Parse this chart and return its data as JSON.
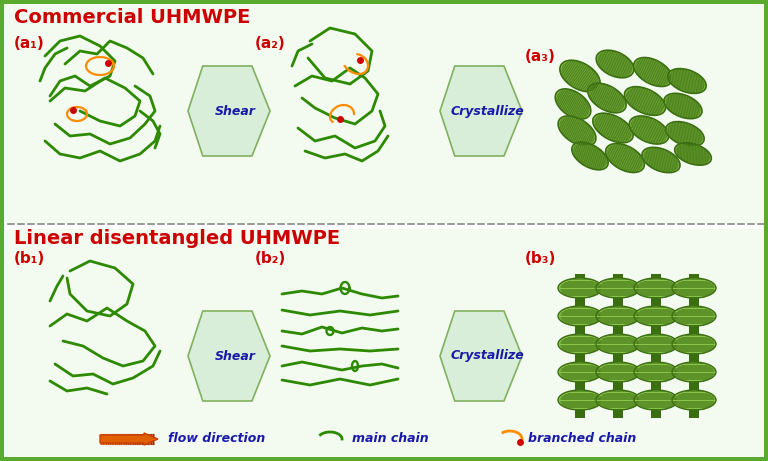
{
  "title_top": "Commercial UHMWPE",
  "title_bottom": "Linear disentangled UHMWPE",
  "title_color": "#cc0000",
  "title_fontsize": 14,
  "label_color": "#cc0000",
  "label_fontsize": 11,
  "shear_color": "#1a1aaa",
  "crystallize_color": "#1a1aaa",
  "arrow_fill_light": "#d8eed8",
  "arrow_fill_dark": "#a0cc80",
  "arrow_edge_color": "#80b060",
  "chain_color": "#2d8a00",
  "branch_color": "#ff8c00",
  "branch_dot_color": "#cc0000",
  "bg_color": "#ffffff",
  "border_color": "#5aaa30",
  "dashed_line_color": "#aaaaaa",
  "crystal_light": "#8bc34a",
  "crystal_mid": "#6aa820",
  "crystal_dark": "#3a6e10",
  "legend_arrow_color": "#e07000",
  "legend_text_color": "#1a1aaa",
  "sub_labels": [
    "(a₁)",
    "(a₂)",
    "(a₃)",
    "(b₁)",
    "(b₂)",
    "(b₃)"
  ],
  "shear_label": "Shear",
  "crystallize_label": "Crystallize",
  "legend_items": [
    "flow direction",
    "main chain",
    "branched chain"
  ]
}
